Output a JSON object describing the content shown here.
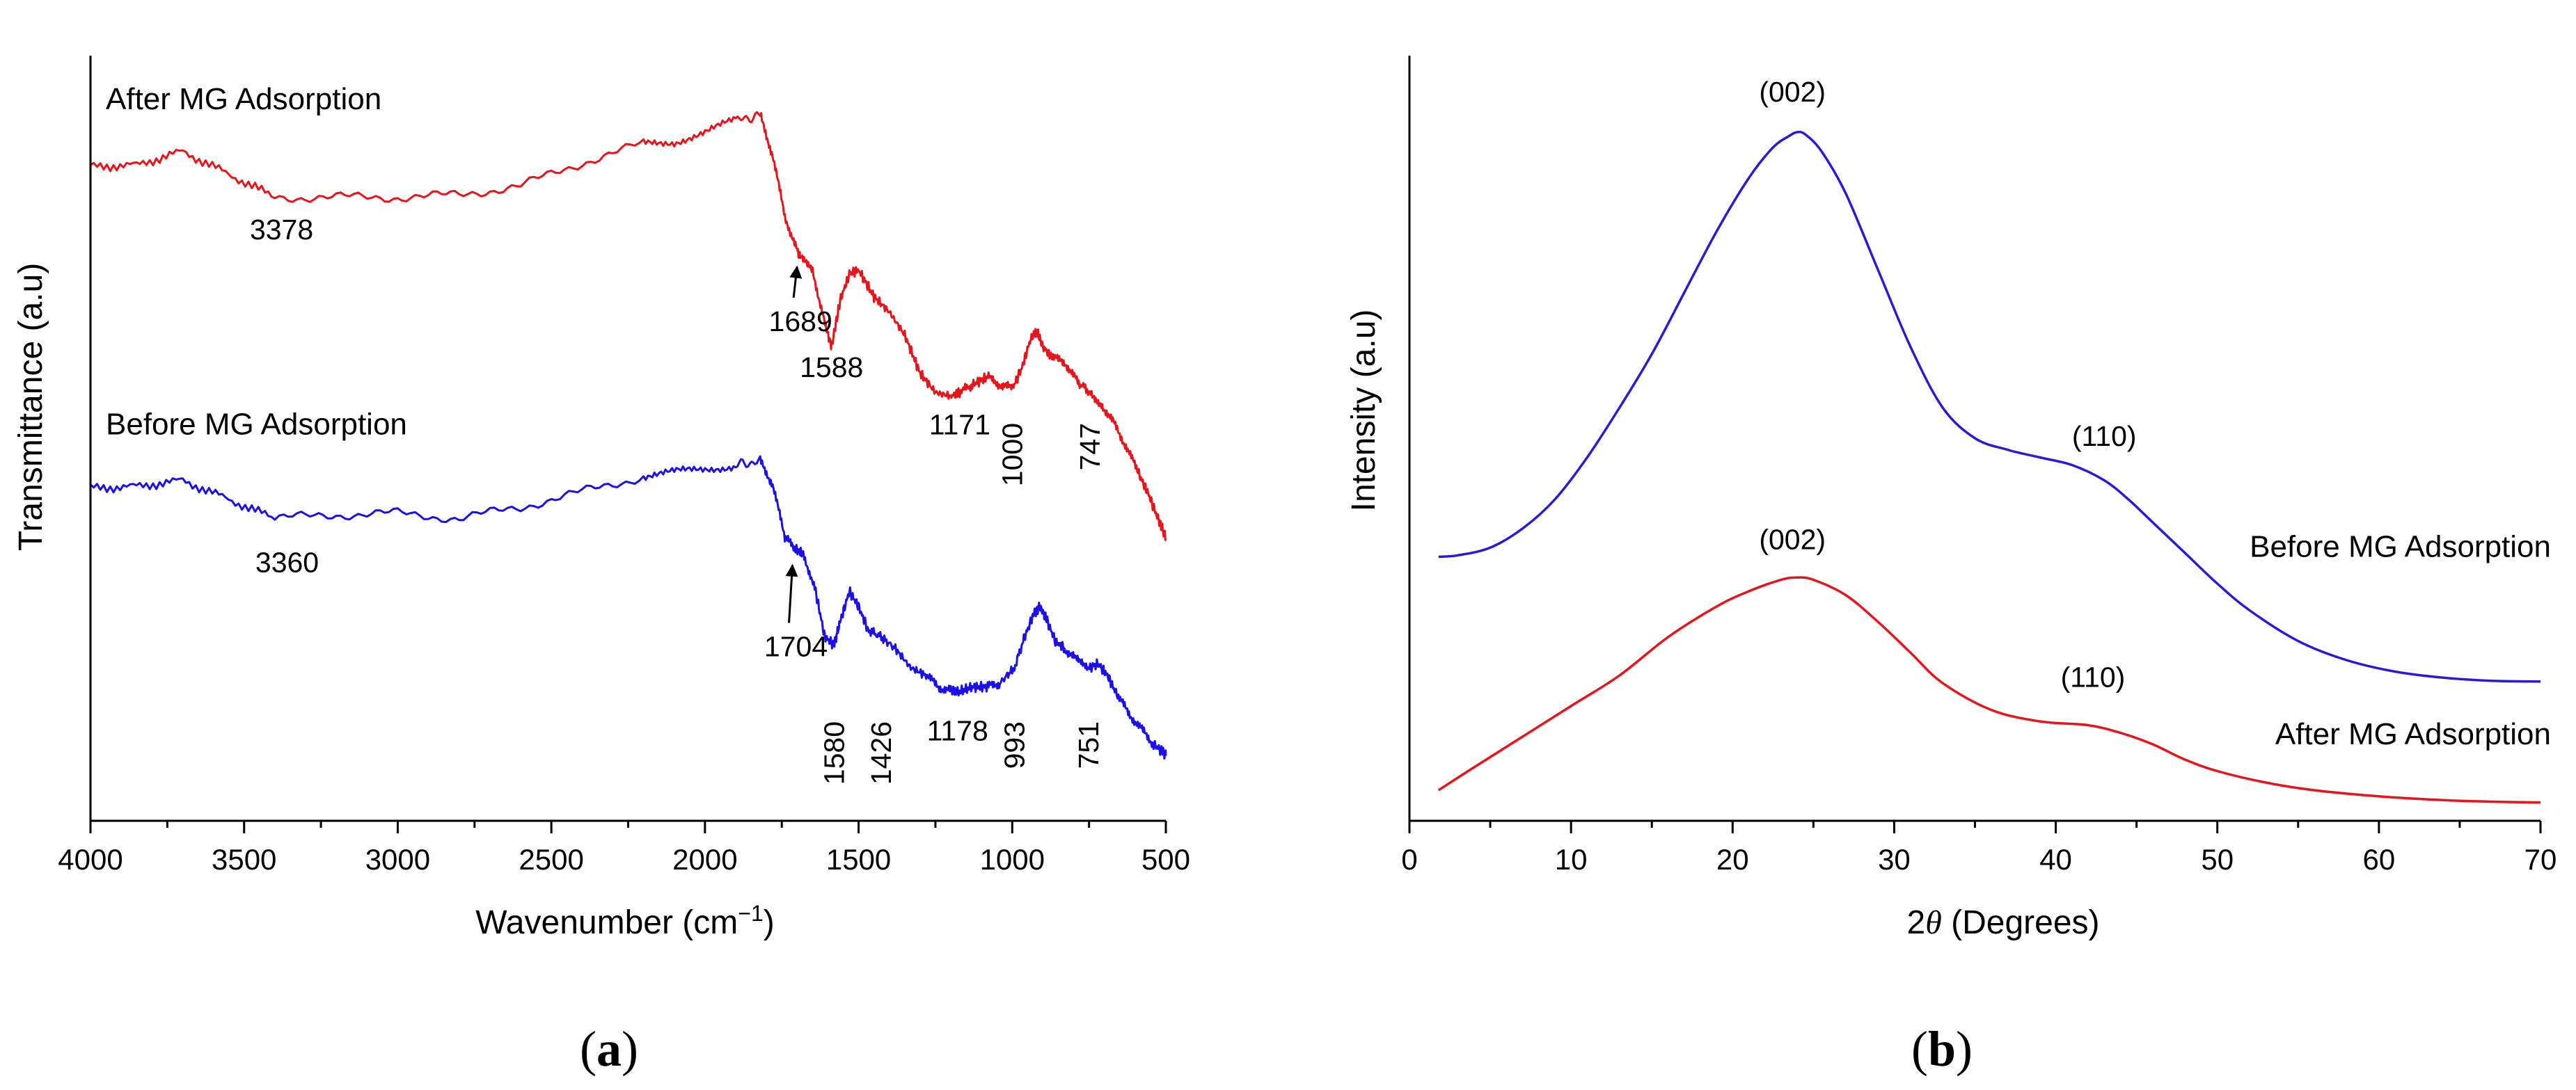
{
  "chart_data": [
    {
      "type": "line",
      "panel": "a",
      "panel_label": "(a)",
      "panel_label_letter": "a",
      "xlabel": "Wavenumber (cm",
      "xlabel_sup": "−1",
      "xlabel_end": ")",
      "ylabel": "Transmittance (a.u)",
      "xlim": [
        4000,
        500
      ],
      "ylim": [
        0,
        1
      ],
      "x_ticks": [
        "4000",
        "3500",
        "3000",
        "2500",
        "2000",
        "1500",
        "1000",
        "500"
      ],
      "x_tick_values": [
        4000,
        3500,
        3000,
        2500,
        2000,
        1500,
        1000,
        500
      ],
      "y_ticks_shown": false,
      "series": [
        {
          "name": "After MG Adsorption",
          "color": "#e8141c",
          "x": [
            4000,
            3850,
            3700,
            3550,
            3400,
            3200,
            3000,
            2800,
            2600,
            2400,
            2200,
            2100,
            2000,
            1900,
            1820,
            1780,
            1740,
            1700,
            1689,
            1650,
            1610,
            1588,
            1560,
            1530,
            1500,
            1450,
            1400,
            1350,
            1300,
            1250,
            1200,
            1171,
            1130,
            1080,
            1040,
            1000,
            970,
            940,
            920,
            900,
            870,
            830,
            790,
            747,
            710,
            670,
            630,
            590,
            560,
            530,
            510,
            500
          ],
          "y": [
            0.855,
            0.857,
            0.875,
            0.845,
            0.815,
            0.815,
            0.815,
            0.818,
            0.83,
            0.86,
            0.885,
            0.888,
            0.9,
            0.915,
            0.922,
            0.87,
            0.79,
            0.745,
            0.735,
            0.72,
            0.65,
            0.62,
            0.68,
            0.715,
            0.72,
            0.685,
            0.665,
            0.635,
            0.585,
            0.56,
            0.555,
            0.56,
            0.57,
            0.58,
            0.57,
            0.565,
            0.59,
            0.63,
            0.64,
            0.62,
            0.605,
            0.6,
            0.575,
            0.56,
            0.545,
            0.52,
            0.49,
            0.455,
            0.43,
            0.4,
            0.38,
            0.37
          ]
        },
        {
          "name": "Before MG Adsorption",
          "color": "#1c10e8",
          "x": [
            4000,
            3850,
            3700,
            3550,
            3400,
            3200,
            3000,
            2800,
            2600,
            2400,
            2200,
            2100,
            2000,
            1900,
            1820,
            1780,
            1740,
            1704,
            1680,
            1640,
            1610,
            1580,
            1560,
            1530,
            1500,
            1470,
            1426,
            1380,
            1330,
            1280,
            1240,
            1200,
            1178,
            1130,
            1080,
            1040,
            993,
            960,
            930,
            910,
            890,
            860,
            830,
            790,
            751,
            720,
            690,
            660,
            620,
            580,
            540,
            510,
            500
          ],
          "y": [
            0.435,
            0.437,
            0.445,
            0.42,
            0.395,
            0.4,
            0.402,
            0.395,
            0.41,
            0.43,
            0.45,
            0.455,
            0.46,
            0.465,
            0.47,
            0.44,
            0.37,
            0.355,
            0.35,
            0.3,
            0.24,
            0.23,
            0.26,
            0.3,
            0.28,
            0.25,
            0.24,
            0.225,
            0.2,
            0.19,
            0.175,
            0.17,
            0.168,
            0.175,
            0.175,
            0.18,
            0.2,
            0.24,
            0.27,
            0.28,
            0.265,
            0.235,
            0.225,
            0.21,
            0.2,
            0.205,
            0.19,
            0.165,
            0.14,
            0.12,
            0.1,
            0.09,
            0.085
          ]
        }
      ],
      "series_labels": [
        {
          "text": "After MG Adsorption",
          "x": 4000,
          "y": 0.93
        },
        {
          "text": "Before MG Adsorption",
          "x": 4000,
          "y": 0.505
        }
      ],
      "annotations": [
        {
          "text": "3378",
          "x": 3378,
          "y": 0.76,
          "rotate": false
        },
        {
          "text": "1689",
          "x": 1689,
          "y": 0.64,
          "rotate": false,
          "arrow": true,
          "arrow_to_y": 0.735
        },
        {
          "text": "1588",
          "x": 1588,
          "y": 0.58,
          "rotate": false
        },
        {
          "text": "1171",
          "x": 1171,
          "y": 0.505,
          "rotate": false
        },
        {
          "text": "1000",
          "x": 1000,
          "y": 0.52,
          "rotate": true
        },
        {
          "text": "747",
          "x": 747,
          "y": 0.52,
          "rotate": true
        },
        {
          "text": "3360",
          "x": 3360,
          "y": 0.325,
          "rotate": false
        },
        {
          "text": "1704",
          "x": 1704,
          "y": 0.215,
          "rotate": false,
          "arrow": true,
          "arrow_to_y": 0.345
        },
        {
          "text": "1580",
          "x": 1580,
          "y": 0.13,
          "rotate": true
        },
        {
          "text": "1426",
          "x": 1426,
          "y": 0.13,
          "rotate": true
        },
        {
          "text": "1178",
          "x": 1178,
          "y": 0.105,
          "rotate": false
        },
        {
          "text": "993",
          "x": 993,
          "y": 0.13,
          "rotate": true
        },
        {
          "text": "751",
          "x": 751,
          "y": 0.13,
          "rotate": true
        }
      ]
    },
    {
      "type": "line",
      "panel": "b",
      "panel_label": "(b)",
      "panel_label_letter": "b",
      "xlabel_prefix": "2",
      "xlabel_symbol": "θ",
      "xlabel_suffix": " (Degrees)",
      "ylabel": "Intensity (a.u)",
      "xlim": [
        0,
        70
      ],
      "ylim": [
        0,
        1
      ],
      "x_ticks": [
        "0",
        "10",
        "20",
        "30",
        "40",
        "50",
        "60",
        "70"
      ],
      "x_tick_values": [
        0,
        10,
        20,
        30,
        40,
        50,
        60,
        70
      ],
      "y_ticks_shown": false,
      "series": [
        {
          "name": "Before MG Adsorption",
          "color": "#2a1ad8",
          "x": [
            1.8,
            3,
            5,
            7,
            9,
            11,
            13,
            15,
            17,
            19,
            21,
            22.5,
            23.5,
            24,
            24.5,
            25.5,
            27,
            29,
            31,
            33,
            35,
            37,
            39,
            41,
            43,
            44.5,
            46,
            48,
            50,
            52,
            55,
            58,
            61,
            64,
            67,
            70
          ],
          "y": [
            0.345,
            0.347,
            0.357,
            0.382,
            0.42,
            0.475,
            0.54,
            0.61,
            0.69,
            0.77,
            0.84,
            0.88,
            0.895,
            0.9,
            0.897,
            0.875,
            0.82,
            0.72,
            0.62,
            0.54,
            0.5,
            0.485,
            0.475,
            0.465,
            0.445,
            0.42,
            0.39,
            0.35,
            0.31,
            0.275,
            0.235,
            0.21,
            0.195,
            0.187,
            0.183,
            0.182
          ]
        },
        {
          "name": "After MG Adsorption",
          "color": "#e8141c",
          "x": [
            1.8,
            4,
            7,
            10,
            13,
            16,
            19,
            21,
            23,
            24,
            25,
            27,
            29,
            31,
            33,
            36,
            39,
            42,
            44,
            46,
            48,
            50,
            53,
            56,
            60,
            64,
            67,
            70
          ],
          "y": [
            0.04,
            0.07,
            0.11,
            0.15,
            0.19,
            0.24,
            0.28,
            0.3,
            0.315,
            0.318,
            0.315,
            0.295,
            0.26,
            0.22,
            0.18,
            0.145,
            0.13,
            0.125,
            0.115,
            0.1,
            0.08,
            0.065,
            0.05,
            0.04,
            0.032,
            0.027,
            0.025,
            0.024
          ]
        }
      ],
      "series_labels": [
        {
          "text": "Before MG Adsorption",
          "x": 70,
          "y": 0.345
        },
        {
          "text": "After MG Adsorption",
          "x": 70,
          "y": 0.1
        }
      ],
      "annotations": [
        {
          "text": "(002)",
          "x": 23.7,
          "y": 0.94
        },
        {
          "text": "(110)",
          "x": 43,
          "y": 0.49
        },
        {
          "text": "(002)",
          "x": 23.7,
          "y": 0.355
        },
        {
          "text": "(110)",
          "x": 42.3,
          "y": 0.175
        }
      ]
    }
  ]
}
